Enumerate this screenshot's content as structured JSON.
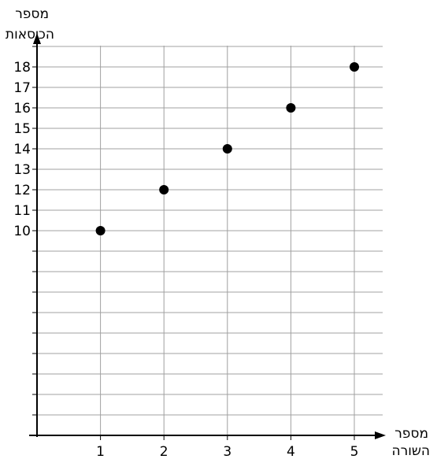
{
  "chart_data": {
    "type": "scatter",
    "title": "",
    "xlabel": [
      "מספר",
      "השורה"
    ],
    "ylabel": [
      "מספר",
      "הכיסאות"
    ],
    "x": [
      1,
      2,
      3,
      4,
      5
    ],
    "y": [
      10,
      12,
      14,
      16,
      18
    ],
    "xlim": [
      0,
      5.5
    ],
    "ylim": [
      0,
      19
    ],
    "x_ticks": [
      1,
      2,
      3,
      4,
      5
    ],
    "y_ticks": [
      10,
      11,
      12,
      13,
      14,
      15,
      16,
      17,
      18
    ],
    "grid": true,
    "point_color": "#000000",
    "grid_color": "#a0a0a0"
  }
}
